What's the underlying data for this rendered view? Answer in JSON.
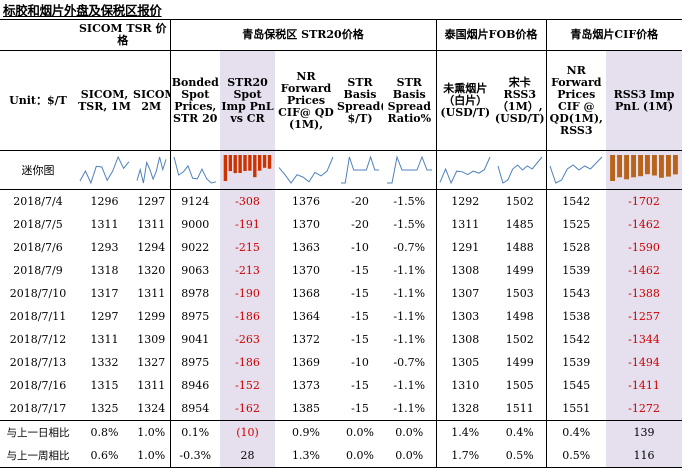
{
  "title": "标胶和烟片外盘及保税区报价",
  "groups": {
    "sicom": "SICOM TSR 价格",
    "qingdao": "青岛保税区 STR20价格",
    "thai": "泰国烟片FOB价格",
    "cif": "青岛烟片CIF价格"
  },
  "headers": [
    "Unit：$/T",
    "SICOM, TSR, 1M",
    "SICOM,TSR, 2M",
    "Bonded Spot Prices, STR 20",
    "STR20 Spot Imp PnL vs CR",
    "NR Forward Prices CIF@ QD (1M),",
    "STR Basis Spread( $/T)",
    "STR Basis Spread Ratio%",
    "未熏烟片（白片）(USD/T)",
    "宋卡RSS3（1M）,(USD/T)",
    "NR Forward Prices CIF @ QD(1M), RSS3",
    "RSS3 Imp PnL (1M)"
  ],
  "spark_label": "迷你图",
  "rows": [
    {
      "date": "2018/7/4",
      "v": [
        "1296",
        "1297",
        "9124",
        "-308",
        "1376",
        "-20",
        "-1.5%",
        "1292",
        "1502",
        "1542",
        "-1702"
      ]
    },
    {
      "date": "2018/7/5",
      "v": [
        "1311",
        "1311",
        "9000",
        "-191",
        "1370",
        "-20",
        "-1.5%",
        "1311",
        "1485",
        "1525",
        "-1462"
      ]
    },
    {
      "date": "2018/7/6",
      "v": [
        "1293",
        "1294",
        "9022",
        "-215",
        "1363",
        "-10",
        "-0.7%",
        "1291",
        "1488",
        "1528",
        "-1590"
      ]
    },
    {
      "date": "2018/7/9",
      "v": [
        "1318",
        "1320",
        "9063",
        "-213",
        "1370",
        "-15",
        "-1.1%",
        "1308",
        "1499",
        "1539",
        "-1462"
      ]
    },
    {
      "date": "2018/7/10",
      "v": [
        "1317",
        "1311",
        "8978",
        "-190",
        "1368",
        "-15",
        "-1.1%",
        "1307",
        "1503",
        "1543",
        "-1388"
      ]
    },
    {
      "date": "2018/7/11",
      "v": [
        "1297",
        "1299",
        "8975",
        "-186",
        "1364",
        "-15",
        "-1.1%",
        "1303",
        "1498",
        "1538",
        "-1257"
      ]
    },
    {
      "date": "2018/7/12",
      "v": [
        "1311",
        "1309",
        "9041",
        "-263",
        "1372",
        "-15",
        "-1.1%",
        "1308",
        "1502",
        "1542",
        "-1344"
      ]
    },
    {
      "date": "2018/7/13",
      "v": [
        "1332",
        "1327",
        "8975",
        "-186",
        "1369",
        "-10",
        "-0.7%",
        "1305",
        "1499",
        "1539",
        "-1494"
      ]
    },
    {
      "date": "2018/7/16",
      "v": [
        "1315",
        "1311",
        "8946",
        "-152",
        "1373",
        "-15",
        "-1.1%",
        "1310",
        "1505",
        "1545",
        "-1411"
      ]
    },
    {
      "date": "2018/7/17",
      "v": [
        "1325",
        "1324",
        "8954",
        "-162",
        "1385",
        "-15",
        "-1.1%",
        "1328",
        "1511",
        "1551",
        "-1272"
      ]
    }
  ],
  "compare": [
    {
      "label": "与上一日相比",
      "v": [
        "0.8%",
        "1.0%",
        "0.1%",
        "(10)",
        "0.9%",
        "0.0%",
        "0.0%",
        "1.4%",
        "0.4%",
        "0.4%",
        "139"
      ]
    },
    {
      "label": "与上一周相比",
      "v": [
        "0.6%",
        "1.0%",
        "-0.3%",
        "28",
        "1.3%",
        "0.0%",
        "0.0%",
        "1.7%",
        "0.5%",
        "0.5%",
        "116"
      ]
    }
  ],
  "colors": {
    "highlight_bg": "#e6e0ee",
    "negative": "#cc0000",
    "spark_line": "#4f81bd",
    "spark_bar_neg": "#cc3300",
    "spark_bar_neg2": "#b8651b"
  }
}
